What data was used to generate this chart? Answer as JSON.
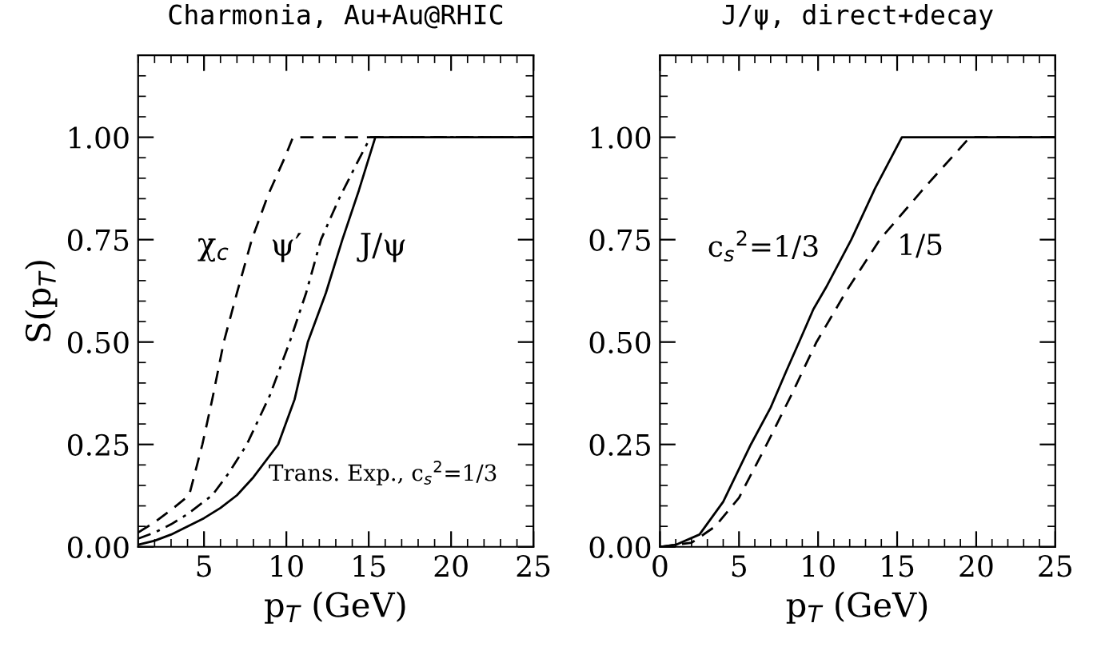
{
  "chart_data": [
    {
      "type": "line",
      "title": "Charmonia, Au+Au@RHIC",
      "xlabel": "p$_{T}$ (GeV)",
      "ylabel": "S(p$_{T}$)",
      "xlim": [
        1,
        25
      ],
      "ylim": [
        0,
        1.2
      ],
      "xticks": [
        5,
        10,
        15,
        20,
        25
      ],
      "yticks": [
        {
          "value": 0,
          "label": "0.00"
        },
        {
          "value": 0.25,
          "label": "0.25"
        },
        {
          "value": 0.5,
          "label": "0.50"
        },
        {
          "value": 0.75,
          "label": "0.75"
        },
        {
          "value": 1,
          "label": "1.00"
        }
      ],
      "grid": false,
      "legend": false,
      "marker": "none",
      "series": [
        {
          "color": "#000000",
          "line_style": "dashed",
          "x": [
            1,
            2,
            3,
            4.1,
            4.9,
            5.5,
            6.2,
            7,
            7.9,
            8.9,
            9.9,
            10.4,
            25
          ],
          "values": [
            0.035,
            0.06,
            0.09,
            0.126,
            0.25,
            0.36,
            0.5,
            0.62,
            0.75,
            0.86,
            0.95,
            1.0,
            1.0
          ]
        },
        {
          "color": "#000000",
          "line_style": "dashdot",
          "x": [
            1,
            2,
            3,
            4,
            5.5,
            6.5,
            7.6,
            9,
            10.2,
            11.2,
            12.1,
            13.2,
            14.2,
            15.1,
            25
          ],
          "values": [
            0.02,
            0.035,
            0.055,
            0.08,
            0.126,
            0.18,
            0.25,
            0.37,
            0.5,
            0.62,
            0.75,
            0.85,
            0.93,
            1.0,
            1.0
          ]
        },
        {
          "color": "#000000",
          "line_style": "solid",
          "x": [
            1,
            2,
            3,
            4,
            5,
            6,
            7,
            8,
            9.5,
            10.5,
            11.3,
            12.4,
            13.4,
            14.4,
            15.4,
            25
          ],
          "values": [
            0.005,
            0.015,
            0.03,
            0.05,
            0.07,
            0.095,
            0.126,
            0.17,
            0.25,
            0.36,
            0.5,
            0.62,
            0.75,
            0.87,
            1.0,
            1.0
          ]
        }
      ],
      "annotations": [
        "χ$_{c}$",
        "ψ′",
        "J/ψ",
        "Trans. Exp., c$_{s}$$^{2}$=1/3"
      ]
    },
    {
      "type": "line",
      "title": "J/ψ, direct+decay",
      "xlabel": "p$_{T}$ (GeV)",
      "xlim": [
        0,
        25
      ],
      "ylim": [
        0,
        1.2
      ],
      "xticks": [
        0,
        5,
        10,
        15,
        20,
        25
      ],
      "yticks": [
        {
          "value": 0,
          "label": "0.00"
        },
        {
          "value": 0.25,
          "label": "0.25"
        },
        {
          "value": 0.5,
          "label": "0.50"
        },
        {
          "value": 0.75,
          "label": "0.75"
        },
        {
          "value": 1,
          "label": "1.00"
        }
      ],
      "grid": false,
      "legend": false,
      "marker": "none",
      "series": [
        {
          "color": "#000000",
          "line_style": "solid",
          "x": [
            0,
            1,
            2.5,
            4,
            5,
            5.75,
            7,
            8,
            8.8,
            9.7,
            10.5,
            12.1,
            13.6,
            15.3,
            25
          ],
          "values": [
            0,
            0.005,
            0.03,
            0.11,
            0.19,
            0.25,
            0.34,
            0.43,
            0.5,
            0.58,
            0.633,
            0.75,
            0.875,
            1.0,
            1.0
          ]
        },
        {
          "color": "#000000",
          "line_style": "dashed",
          "x": [
            0,
            2,
            3.5,
            5,
            6.75,
            8.3,
            9.9,
            11.8,
            13.9,
            16.8,
            19.6,
            25
          ],
          "values": [
            0,
            0.01,
            0.05,
            0.12,
            0.25,
            0.37,
            0.5,
            0.625,
            0.75,
            0.88,
            1.0,
            1.0
          ]
        }
      ],
      "annotations": [
        "c$_{s}$$^{2}$=1/3",
        "1/5"
      ]
    }
  ]
}
